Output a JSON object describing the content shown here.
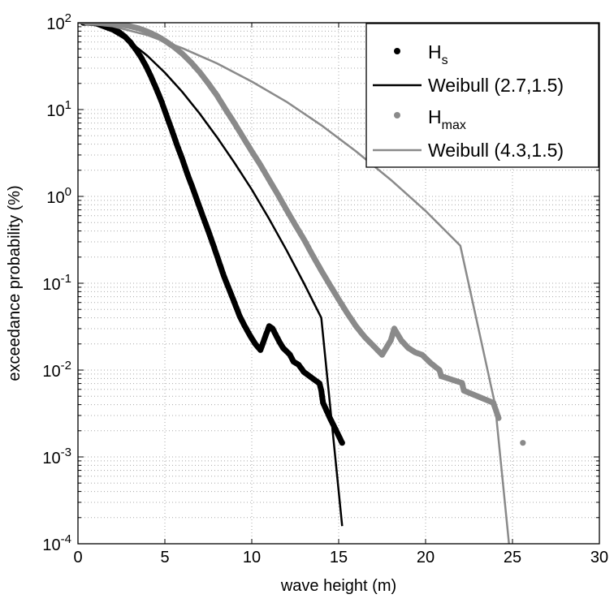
{
  "chart_data": {
    "type": "scatter",
    "xlabel": "wave height (m)",
    "ylabel": "exceedance probability (%)",
    "xlim": [
      0,
      30
    ],
    "ylim": [
      0.0001,
      100
    ],
    "yscale": "log",
    "grid": true,
    "legend_position": "top-right",
    "x_ticks": [
      {
        "value": 0,
        "label": "0"
      },
      {
        "value": 5,
        "label": "5"
      },
      {
        "value": 10,
        "label": "10"
      },
      {
        "value": 15,
        "label": "15"
      },
      {
        "value": 20,
        "label": "20"
      },
      {
        "value": 25,
        "label": "25"
      },
      {
        "value": 30,
        "label": "30"
      }
    ],
    "y_ticks": [
      {
        "value": 100,
        "base": "10",
        "exp": "2"
      },
      {
        "value": 10,
        "base": "10",
        "exp": "1"
      },
      {
        "value": 1,
        "base": "10",
        "exp": "0"
      },
      {
        "value": 0.1,
        "base": "10",
        "exp": "-1"
      },
      {
        "value": 0.01,
        "base": "10",
        "exp": "-2"
      },
      {
        "value": 0.001,
        "base": "10",
        "exp": "-3"
      },
      {
        "value": 0.0001,
        "base": "10",
        "exp": "-4"
      }
    ],
    "series": [
      {
        "name": "H",
        "name_sub": "s",
        "kind": "points",
        "color": "#000000",
        "x": [
          0.3,
          0.6,
          0.9,
          1.2,
          1.5,
          1.8,
          2.1,
          2.4,
          2.7,
          3.0,
          3.3,
          3.6,
          3.9,
          4.2,
          4.5,
          4.8,
          5.1,
          5.4,
          5.7,
          6.0,
          6.3,
          6.6,
          6.9,
          7.2,
          7.5,
          7.8,
          8.1,
          8.4,
          8.7,
          9.0,
          9.3,
          9.6,
          9.9,
          10.2,
          10.5,
          10.8,
          11.0,
          11.2,
          11.4,
          11.6,
          11.8,
          12.2,
          12.4,
          12.7,
          13.0,
          13.9,
          14.0,
          14.1,
          14.5,
          15.2
        ],
        "y": [
          99.8,
          99.5,
          98.8,
          97.5,
          95,
          90,
          84,
          77,
          69,
          60,
          50,
          41,
          32,
          24,
          17.5,
          12.5,
          8.5,
          5.8,
          3.9,
          2.7,
          1.8,
          1.25,
          0.85,
          0.58,
          0.4,
          0.27,
          0.18,
          0.12,
          0.085,
          0.06,
          0.042,
          0.032,
          0.025,
          0.02,
          0.017,
          0.025,
          0.032,
          0.03,
          0.025,
          0.021,
          0.018,
          0.015,
          0.0125,
          0.0115,
          0.0095,
          0.007,
          0.0058,
          0.0042,
          0.0028,
          0.00145
        ]
      },
      {
        "name": "Weibull (2.7,1.5)",
        "kind": "line",
        "color": "#000000",
        "x": [
          0,
          1,
          2,
          3,
          4,
          5,
          6,
          7,
          8,
          9,
          10,
          11,
          12,
          13,
          14,
          15.2
        ],
        "y": [
          100,
          94,
          79,
          60,
          41.5,
          26.6,
          16,
          9,
          4.8,
          2.45,
          1.2,
          0.55,
          0.24,
          0.1,
          0.04,
          0.00016
        ]
      },
      {
        "name": "H",
        "name_sub": "max",
        "kind": "points",
        "color": "#8a8a8a",
        "x": [
          0.5,
          1.0,
          1.5,
          2.0,
          2.5,
          3.0,
          3.5,
          4.0,
          4.5,
          5.0,
          5.5,
          6.0,
          6.5,
          7.0,
          7.5,
          8.0,
          8.5,
          9.0,
          9.5,
          10.0,
          10.5,
          11.0,
          11.5,
          12.0,
          12.5,
          13.0,
          13.5,
          14.0,
          14.5,
          15.0,
          15.5,
          16.0,
          16.5,
          17.0,
          17.5,
          18.0,
          18.2,
          18.6,
          19.0,
          19.4,
          19.8,
          20.3,
          20.8,
          20.9,
          22.1,
          22.2,
          23.9,
          24.2,
          25.6
        ],
        "y": [
          99.9,
          99.7,
          99,
          97.5,
          95,
          91,
          86,
          79,
          71,
          62,
          53,
          44,
          35,
          27,
          20,
          14.5,
          10,
          7,
          4.8,
          3.3,
          2.3,
          1.55,
          1.05,
          0.7,
          0.47,
          0.32,
          0.21,
          0.14,
          0.095,
          0.065,
          0.045,
          0.032,
          0.024,
          0.019,
          0.015,
          0.022,
          0.03,
          0.022,
          0.018,
          0.016,
          0.015,
          0.012,
          0.01,
          0.0085,
          0.0071,
          0.0058,
          0.0042,
          0.0028,
          0.00145
        ]
      },
      {
        "name": "Weibull (4.3,1.5)",
        "kind": "line",
        "color": "#8a8a8a",
        "x": [
          0,
          2,
          4,
          6,
          8,
          10,
          12,
          14,
          16,
          18,
          20,
          22,
          24,
          24.8
        ],
        "y": [
          100,
          91,
          72,
          51,
          34,
          21,
          12.3,
          6.6,
          3.3,
          1.55,
          0.68,
          0.27,
          0.004,
          0.0001
        ]
      }
    ]
  }
}
